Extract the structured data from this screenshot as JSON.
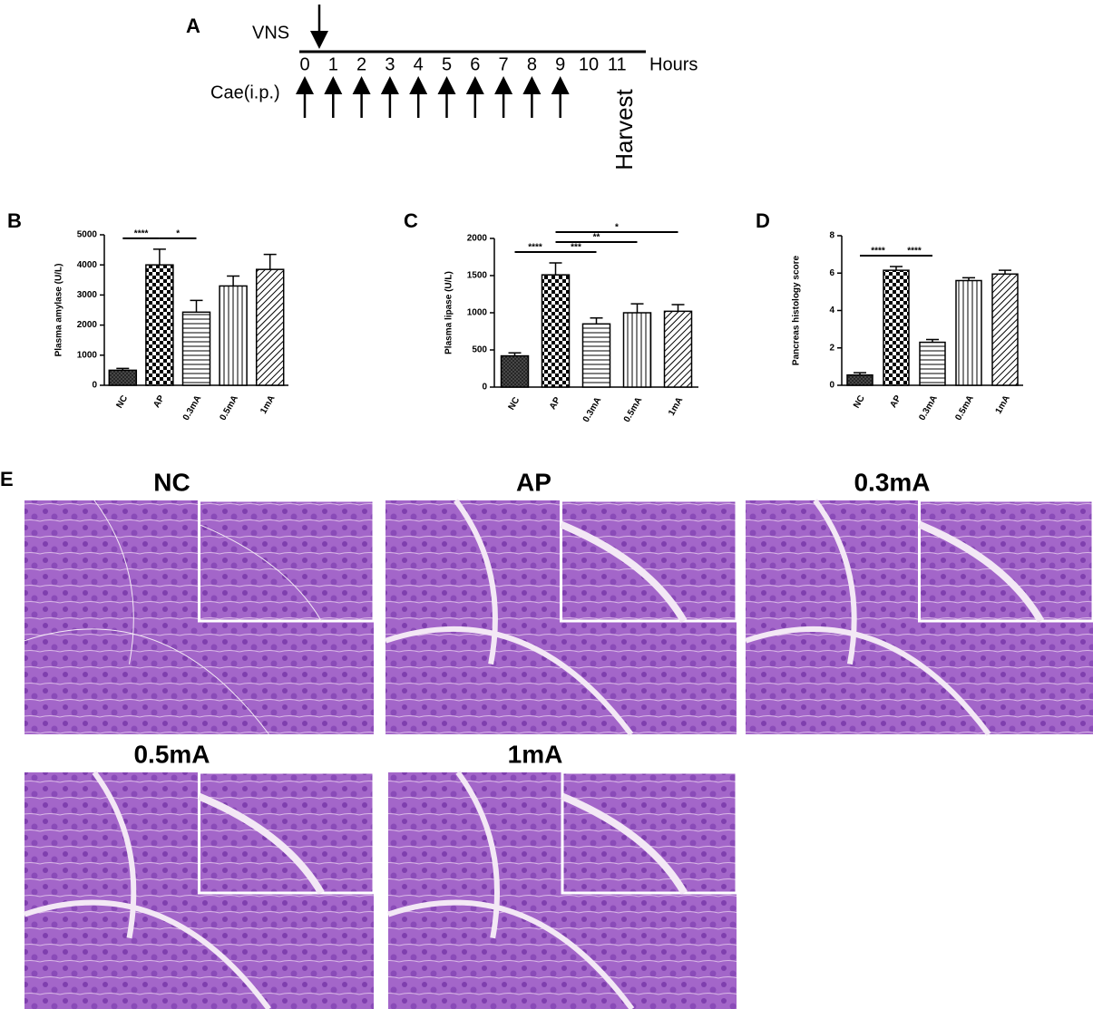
{
  "timeline": {
    "label": "A",
    "vns": "VNS",
    "treatment": "Cae(i.p.)",
    "hours": [
      0,
      1,
      2,
      3,
      4,
      5,
      6,
      7,
      8,
      9,
      10,
      11
    ],
    "injections_at": [
      0,
      1,
      2,
      3,
      4,
      5,
      6,
      7,
      8,
      9
    ],
    "unit": "Hours",
    "harvest": "Harvest"
  },
  "chart_data": [
    {
      "type": "bar",
      "panel": "B",
      "y_label": "Plasma amylase (U/L)",
      "categories": [
        "NC",
        "AP",
        "0.3mA",
        "0.5mA",
        "1mA"
      ],
      "values": [
        500,
        4000,
        2430,
        3300,
        3850
      ],
      "errors": [
        60,
        520,
        390,
        330,
        500
      ],
      "ylim": [
        0,
        5000
      ],
      "yticks": [
        0,
        1000,
        2000,
        3000,
        4000,
        5000
      ],
      "significance": [
        {
          "label": "****",
          "from": 0,
          "to": 1
        },
        {
          "label": "*",
          "from": 1,
          "to": 2
        }
      ]
    },
    {
      "type": "bar",
      "panel": "C",
      "y_label": "Plasma lipase (U/L)",
      "categories": [
        "NC",
        "AP",
        "0.3mA",
        "0.5mA",
        "1mA"
      ],
      "values": [
        420,
        1510,
        850,
        1000,
        1020
      ],
      "errors": [
        40,
        160,
        80,
        120,
        90
      ],
      "ylim": [
        0,
        2000
      ],
      "yticks": [
        0,
        500,
        1000,
        1500,
        2000
      ],
      "significance": [
        {
          "label": "*",
          "from": 1,
          "to": 4
        },
        {
          "label": "**",
          "from": 1,
          "to": 3
        },
        {
          "label": "***",
          "from": 1,
          "to": 2
        },
        {
          "label": "****",
          "from": 0,
          "to": 1
        }
      ]
    },
    {
      "type": "bar",
      "panel": "D",
      "y_label": "Pancreas histology score",
      "categories": [
        "NC",
        "AP",
        "0.3mA",
        "0.5mA",
        "1mA"
      ],
      "values": [
        0.55,
        6.15,
        2.3,
        5.6,
        5.95
      ],
      "errors": [
        0.12,
        0.2,
        0.15,
        0.15,
        0.2
      ],
      "ylim": [
        0,
        8
      ],
      "yticks": [
        0,
        2,
        4,
        6,
        8
      ],
      "significance": [
        {
          "label": "****",
          "from": 0,
          "to": 1
        },
        {
          "label": "****",
          "from": 1,
          "to": 2
        }
      ]
    }
  ],
  "histology": {
    "label": "E",
    "panels": [
      {
        "label": "NC"
      },
      {
        "label": "AP"
      },
      {
        "label": "0.3mA"
      },
      {
        "label": "0.5mA"
      },
      {
        "label": "1mA"
      }
    ]
  }
}
